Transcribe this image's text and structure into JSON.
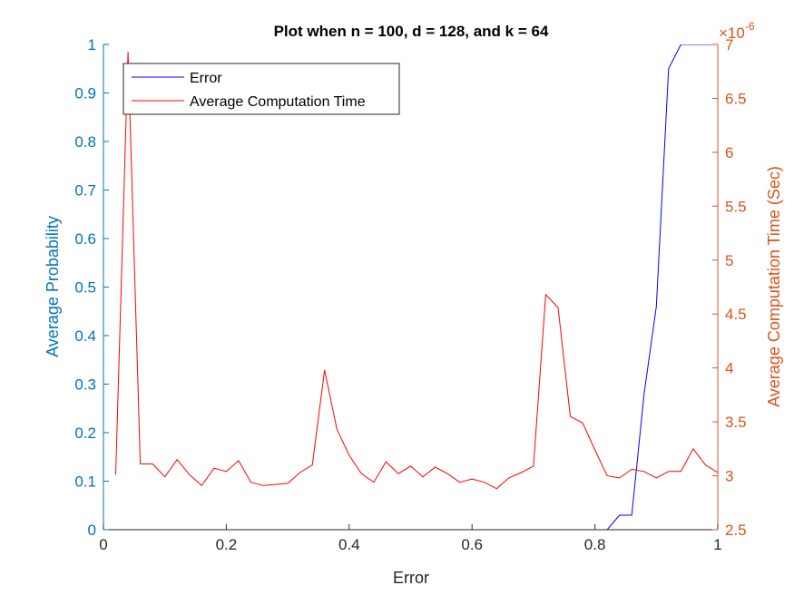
{
  "chart_data": {
    "type": "line",
    "title": "Plot when n = 100, d = 128, and k = 64",
    "xlabel": "Error",
    "ylabel_left": "Average Probability",
    "ylabel_right": "Average Computation Time (Sec)",
    "right_axis_exponent": "×10",
    "right_axis_exponent_power": "-6",
    "xlim": [
      0,
      1
    ],
    "ylim_left": [
      0,
      1
    ],
    "ylim_right": [
      2.5,
      7
    ],
    "x_ticks": [
      "0",
      "0.2",
      "0.4",
      "0.6",
      "0.8",
      "1"
    ],
    "y_left_ticks": [
      "0",
      "0.1",
      "0.2",
      "0.3",
      "0.4",
      "0.5",
      "0.6",
      "0.7",
      "0.8",
      "0.9",
      "1"
    ],
    "y_right_ticks": [
      "2.5",
      "3",
      "3.5",
      "4",
      "4.5",
      "5",
      "5.5",
      "6",
      "6.5",
      "7"
    ],
    "grid": false,
    "legend_position": "top-left",
    "colors": {
      "left_axis": "#0072BD",
      "right_axis": "#D95319",
      "error_line": "#0000FF",
      "time_line": "#FF0000",
      "black": "#262626"
    },
    "series": [
      {
        "name": "Error",
        "axis": "left",
        "x": [
          0.82,
          0.84,
          0.86,
          0.88,
          0.9,
          0.92,
          0.94,
          0.96,
          0.98,
          1.0
        ],
        "y": [
          0,
          0.03,
          0.03,
          0.28,
          0.46,
          0.95,
          1.0,
          1.0,
          1.0,
          1.0
        ]
      },
      {
        "name": "Average Computation Time",
        "axis": "right",
        "x": [
          0.02,
          0.04,
          0.06,
          0.08,
          0.1,
          0.12,
          0.14,
          0.16,
          0.18,
          0.2,
          0.22,
          0.24,
          0.26,
          0.28,
          0.3,
          0.32,
          0.34,
          0.36,
          0.38,
          0.4,
          0.42,
          0.44,
          0.46,
          0.48,
          0.5,
          0.52,
          0.54,
          0.56,
          0.58,
          0.6,
          0.62,
          0.64,
          0.66,
          0.68,
          0.7,
          0.72,
          0.74,
          0.76,
          0.78,
          0.8,
          0.82,
          0.84,
          0.86,
          0.88,
          0.9,
          0.92,
          0.94,
          0.96,
          0.98,
          1.0
        ],
        "y": [
          3.01,
          6.93,
          3.11,
          3.11,
          2.99,
          3.15,
          3.01,
          2.91,
          3.07,
          3.04,
          3.14,
          2.94,
          2.91,
          2.92,
          2.93,
          3.03,
          3.1,
          3.98,
          3.43,
          3.19,
          3.02,
          2.94,
          3.13,
          3.02,
          3.09,
          2.99,
          3.08,
          3.02,
          2.94,
          2.97,
          2.94,
          2.88,
          2.98,
          3.03,
          3.09,
          4.68,
          4.56,
          3.55,
          3.49,
          3.24,
          3.0,
          2.98,
          3.06,
          3.04,
          2.98,
          3.04,
          3.04,
          3.25,
          3.1,
          3.03
        ]
      }
    ]
  }
}
